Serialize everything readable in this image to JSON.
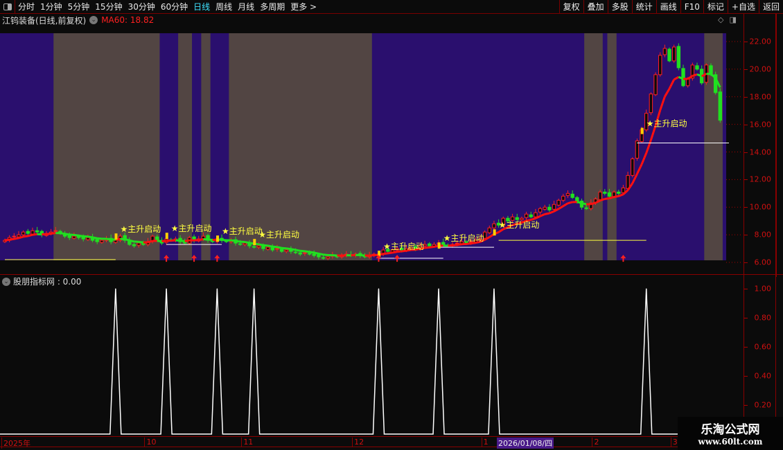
{
  "toolbar": {
    "periods": [
      "分时",
      "1分钟",
      "5分钟",
      "15分钟",
      "30分钟",
      "60分钟",
      "日线",
      "周线",
      "月线",
      "多周期",
      "更多 >"
    ],
    "active": "日线",
    "right_buttons": [
      "复权",
      "叠加",
      "多股",
      "统计",
      "画线",
      "F10",
      "标记",
      "+自选",
      "返回"
    ]
  },
  "header": {
    "title": "江钨装备(日线,前复权)",
    "ma_label": "MA60: 18.82"
  },
  "indicator": {
    "title": "股朋指标网 : 0.00"
  },
  "watermark": {
    "name": "乐淘公式网",
    "url": "www.60lt.com"
  },
  "colors": {
    "up": "#ff2020",
    "down": "#20e020",
    "band_purple": "#2a0f6e",
    "band_gray": "#524543",
    "signal": "#ffff40"
  },
  "chart_data": [
    {
      "type": "candlestick",
      "title": "江钨装备(日线,前复权)",
      "ylim": [
        5.8,
        22.6
      ],
      "yticks": [
        6,
        8,
        10,
        12,
        14,
        16,
        18,
        20,
        22
      ],
      "ytick_labels": [
        "6.00",
        "8.00",
        "10.00",
        "12.00",
        "14.00",
        "16.00",
        "18.00",
        "20.00",
        "22.00"
      ],
      "x_labels": [
        {
          "i": 0,
          "text": "2025年"
        },
        {
          "i": 31,
          "text": "10"
        },
        {
          "i": 52,
          "text": "11"
        },
        {
          "i": 76,
          "text": "12"
        },
        {
          "i": 104,
          "text": "1"
        },
        {
          "i": 128,
          "text": "2"
        },
        {
          "i": 145,
          "text": "3"
        }
      ],
      "cursor_label": "2026/01/08/四",
      "closes": [
        7.6,
        7.8,
        7.9,
        8.0,
        8.2,
        8.1,
        8.3,
        8.2,
        8.0,
        8.1,
        8.2,
        8.3,
        8.1,
        7.9,
        7.8,
        7.9,
        7.8,
        7.7,
        7.8,
        7.6,
        7.5,
        7.6,
        7.7,
        7.5,
        7.6,
        7.9,
        7.6,
        7.3,
        7.2,
        7.4,
        7.3,
        7.5,
        7.9,
        7.6,
        7.4,
        7.7,
        7.6,
        7.7,
        7.5,
        7.4,
        7.8,
        7.6,
        7.7,
        7.9,
        7.6,
        7.5,
        7.7,
        7.6,
        7.5,
        7.6,
        7.4,
        7.3,
        7.4,
        7.2,
        7.1,
        7.2,
        7.0,
        7.1,
        6.9,
        7.0,
        6.8,
        6.9,
        6.8,
        6.7,
        6.6,
        6.7,
        6.6,
        6.5,
        6.4,
        6.3,
        6.4,
        6.5,
        6.4,
        6.5,
        6.6,
        6.5,
        6.6,
        6.5,
        6.4,
        6.5,
        6.6,
        6.6,
        6.9,
        6.8,
        6.9,
        7.0,
        6.9,
        7.0,
        7.1,
        7.0,
        7.2,
        7.3,
        7.2,
        7.3,
        7.4,
        7.3,
        7.2,
        7.3,
        7.4,
        7.5,
        7.4,
        7.5,
        7.6,
        7.7,
        8.2,
        8.5,
        8.8,
        8.7,
        9.2,
        9.0,
        9.3,
        9.1,
        9.2,
        9.5,
        9.3,
        9.6,
        9.9,
        10.0,
        9.8,
        10.2,
        10.5,
        10.8,
        11.0,
        10.7,
        10.4,
        10.0,
        9.9,
        10.3,
        10.6,
        11.1,
        11.0,
        10.8,
        11.1,
        11.0,
        11.4,
        12.3,
        13.5,
        14.8,
        15.6,
        16.8,
        18.2,
        19.6,
        21.0,
        21.5,
        20.6,
        21.6,
        20.1,
        18.8,
        19.3,
        20.3,
        20.0,
        19.0,
        20.3,
        19.6,
        18.3,
        16.3
      ],
      "gray_bands": [
        [
          11,
          34
        ],
        [
          38,
          41
        ],
        [
          43,
          45
        ],
        [
          49,
          80
        ],
        [
          126,
          130
        ],
        [
          131,
          133
        ],
        [
          152,
          156
        ]
      ],
      "signals": [
        {
          "i": 25,
          "p": 8.2,
          "text": "★主升启动"
        },
        {
          "i": 36,
          "p": 8.25,
          "text": "★主升启动"
        },
        {
          "i": 47,
          "p": 8.05,
          "text": "★主升启动"
        },
        {
          "i": 55,
          "p": 7.8,
          "text": "★主升启动"
        },
        {
          "i": 82,
          "p": 6.95,
          "text": "★主升启动"
        },
        {
          "i": 95,
          "p": 7.55,
          "text": "★主升启动"
        },
        {
          "i": 107,
          "p": 8.5,
          "text": "★主升启动"
        },
        {
          "i": 139,
          "p": 15.85,
          "text": "★主升启动"
        }
      ],
      "arrows": [
        35,
        41,
        46,
        81,
        85,
        134
      ],
      "hlines": [
        {
          "from": 0,
          "to": 24,
          "p": 6.2,
          "color": "#ffff40"
        },
        {
          "from": 107,
          "to": 139,
          "p": 7.6,
          "color": "#ffff40"
        },
        {
          "from": 137,
          "to": 157,
          "p": 14.65,
          "color": "#ffffff"
        },
        {
          "from": 35,
          "to": 47,
          "p": 7.3,
          "color": "#ffffff"
        },
        {
          "from": 81,
          "to": 95,
          "p": 6.3,
          "color": "#ffffff"
        },
        {
          "from": 94,
          "to": 106,
          "p": 7.1,
          "color": "#ffffff"
        }
      ]
    },
    {
      "type": "line",
      "title": "股朋指标网",
      "ylim": [
        0,
        1.05
      ],
      "yticks": [
        0.2,
        0.4,
        0.6,
        0.8,
        1.0
      ],
      "ytick_labels": [
        "0.20",
        "0.40",
        "0.60",
        "0.80",
        "1.00"
      ],
      "spikes": [
        24,
        35,
        46,
        54,
        81,
        94,
        106,
        139
      ],
      "value": 0.0
    }
  ]
}
